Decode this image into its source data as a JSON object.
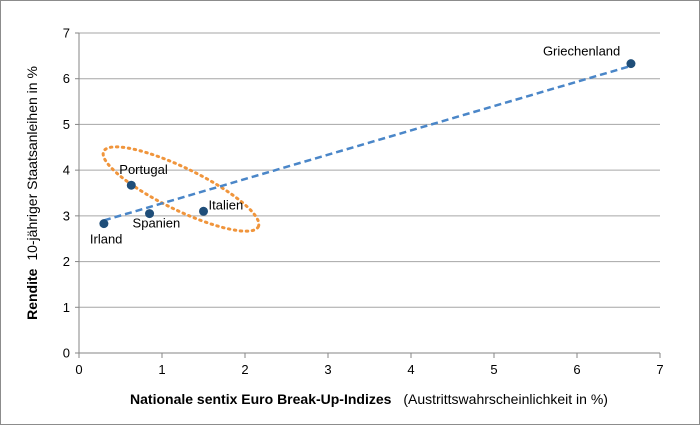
{
  "chart_data": {
    "type": "scatter",
    "title": "",
    "xlabel_bold": "Nationale sentix Euro Break-Up-Indizes",
    "xlabel_suffix": "(Austrittswahrscheinlichkeit in %)",
    "ylabel_bold": "Rendite",
    "ylabel_rest": "10-jähriger Staatsanleihen in %",
    "xlim": [
      0,
      7
    ],
    "ylim": [
      0,
      7
    ],
    "xticks": [
      0,
      1,
      2,
      3,
      4,
      5,
      6,
      7
    ],
    "yticks": [
      0,
      1,
      2,
      3,
      4,
      5,
      6,
      7
    ],
    "grid": "horizontal",
    "legend": "none",
    "points": [
      {
        "label": "Griechenland",
        "x": 6.65,
        "y": 6.33
      },
      {
        "label": "Portugal",
        "x": 0.63,
        "y": 3.67
      },
      {
        "label": "Italien",
        "x": 1.5,
        "y": 3.1
      },
      {
        "label": "Spanien",
        "x": 0.85,
        "y": 3.05
      },
      {
        "label": "Irland",
        "x": 0.3,
        "y": 2.83
      }
    ],
    "trendline": {
      "x": [
        0.3,
        6.65
      ],
      "y": [
        2.9,
        6.28
      ],
      "style": "dashed",
      "color": "#4a86c8"
    },
    "highlight_ellipse": {
      "color": "#f0953c",
      "style": "dotted"
    },
    "marker_color": "#1f4e79"
  }
}
